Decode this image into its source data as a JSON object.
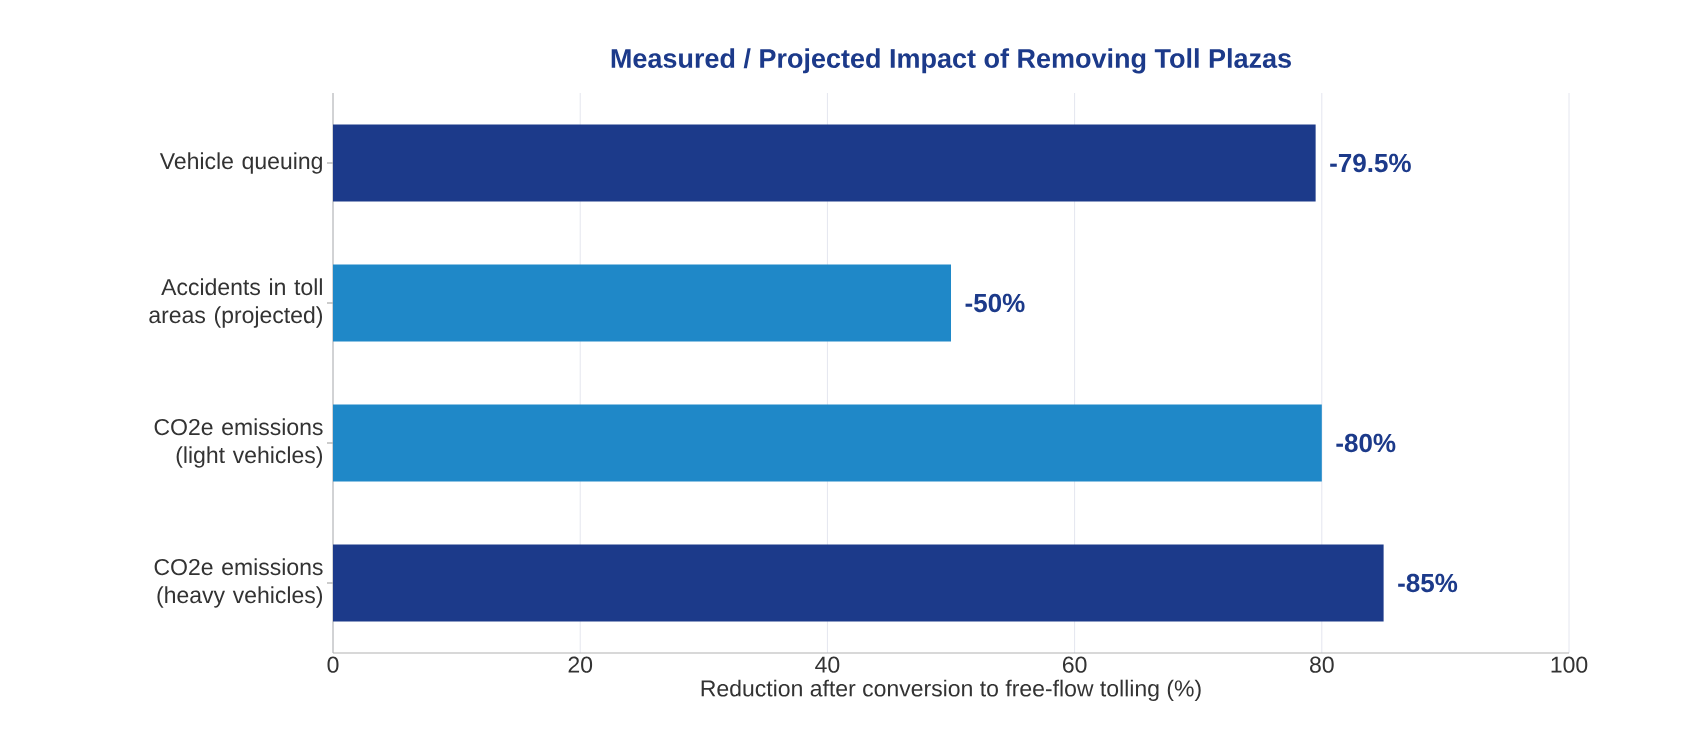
{
  "chart_data": {
    "type": "bar",
    "orientation": "horizontal",
    "title": "Measured / Projected Impact of Removing Toll Plazas",
    "xlabel": "Reduction after conversion to free-flow tolling (%)",
    "categories": [
      "Vehicle queuing",
      "Accidents in toll areas (projected)",
      "CO2e emissions (light vehicles)",
      "CO2e emissions (heavy vehicles)"
    ],
    "values": [
      79.5,
      50,
      80,
      85
    ],
    "colors": [
      "#1c3a8a",
      "#1f88c8",
      "#1f88c8",
      "#1c3a8a"
    ],
    "annotations": [
      {
        "text": "-79.5%",
        "x": 79.5,
        "y": "Vehicle queuing"
      },
      {
        "text": "-50%",
        "x": 50,
        "y": "Accidents in toll areas (projected)"
      },
      {
        "text": "-80%",
        "x": 80,
        "y": "CO2e emissions (light vehicles)"
      },
      {
        "text": "-85%",
        "x": 85,
        "y": "CO2e emissions (heavy vehicles)"
      }
    ],
    "xlim": [
      0,
      100
    ],
    "xticks": [
      0,
      20,
      40,
      60,
      80,
      100
    ],
    "grid": "x"
  }
}
